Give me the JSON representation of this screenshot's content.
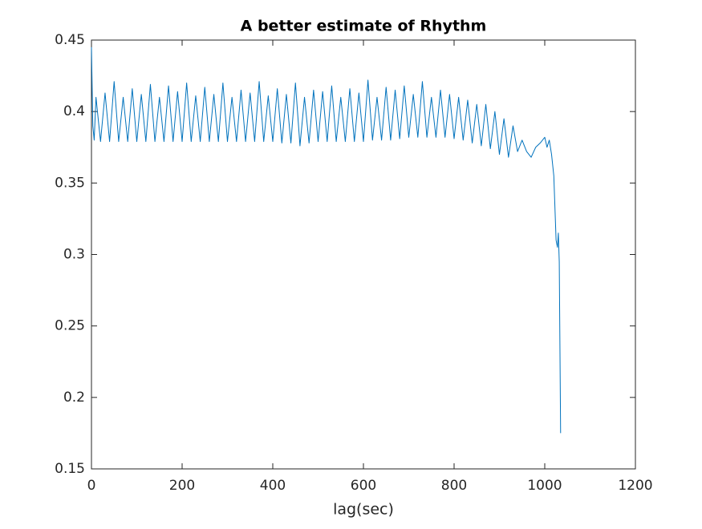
{
  "chart_data": {
    "type": "line",
    "title": "A better estimate of Rhythm",
    "x_label": "lag(sec)",
    "xlim": [
      0,
      1200
    ],
    "xticks": [
      0,
      200,
      400,
      600,
      800,
      1000,
      1200
    ],
    "ylim": [
      0.15,
      0.45
    ],
    "yticks": [
      0.15,
      0.2,
      0.25,
      0.3,
      0.35,
      0.4,
      0.45
    ],
    "grid": false,
    "x": [
      0,
      3,
      6,
      10,
      20,
      30,
      40,
      50,
      60,
      70,
      80,
      90,
      100,
      110,
      120,
      130,
      140,
      150,
      160,
      170,
      180,
      190,
      200,
      210,
      220,
      230,
      240,
      250,
      260,
      270,
      280,
      290,
      300,
      310,
      320,
      330,
      340,
      350,
      360,
      370,
      380,
      390,
      400,
      410,
      420,
      430,
      440,
      450,
      460,
      470,
      480,
      490,
      500,
      510,
      520,
      530,
      540,
      550,
      560,
      570,
      580,
      590,
      600,
      610,
      620,
      630,
      640,
      650,
      660,
      670,
      680,
      690,
      700,
      710,
      720,
      730,
      740,
      750,
      760,
      770,
      780,
      790,
      800,
      810,
      820,
      830,
      840,
      850,
      860,
      870,
      880,
      890,
      900,
      910,
      920,
      930,
      940,
      950,
      960,
      970,
      980,
      990,
      1000,
      1005,
      1010,
      1015,
      1020,
      1025,
      1028,
      1030,
      1032,
      1035
    ],
    "series": [
      {
        "color": "#0072bd",
        "values": [
          0.445,
          0.39,
          0.38,
          0.41,
          0.379,
          0.413,
          0.379,
          0.421,
          0.379,
          0.41,
          0.379,
          0.416,
          0.379,
          0.412,
          0.379,
          0.419,
          0.379,
          0.41,
          0.379,
          0.418,
          0.379,
          0.414,
          0.379,
          0.42,
          0.379,
          0.411,
          0.379,
          0.417,
          0.379,
          0.412,
          0.379,
          0.42,
          0.379,
          0.41,
          0.379,
          0.415,
          0.379,
          0.413,
          0.379,
          0.421,
          0.379,
          0.411,
          0.379,
          0.416,
          0.378,
          0.412,
          0.378,
          0.42,
          0.376,
          0.41,
          0.378,
          0.415,
          0.379,
          0.414,
          0.379,
          0.418,
          0.379,
          0.41,
          0.379,
          0.416,
          0.379,
          0.413,
          0.379,
          0.422,
          0.38,
          0.41,
          0.38,
          0.417,
          0.38,
          0.415,
          0.381,
          0.418,
          0.382,
          0.412,
          0.382,
          0.421,
          0.382,
          0.41,
          0.382,
          0.415,
          0.382,
          0.412,
          0.381,
          0.41,
          0.38,
          0.408,
          0.378,
          0.405,
          0.376,
          0.405,
          0.374,
          0.4,
          0.37,
          0.395,
          0.368,
          0.39,
          0.372,
          0.38,
          0.372,
          0.368,
          0.375,
          0.378,
          0.382,
          0.375,
          0.38,
          0.37,
          0.355,
          0.31,
          0.305,
          0.315,
          0.295,
          0.175
        ]
      }
    ]
  }
}
